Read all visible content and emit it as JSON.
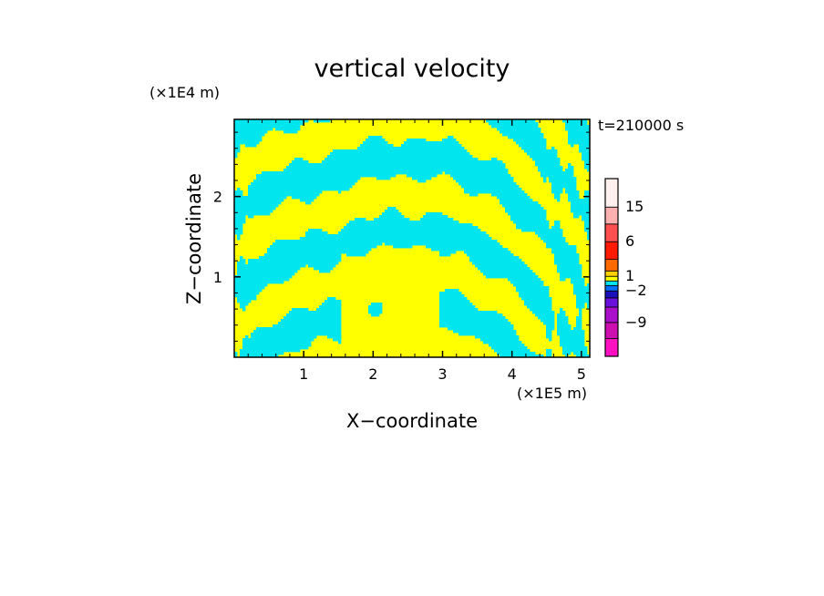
{
  "chart_data": {
    "type": "heatmap",
    "title": "vertical velocity",
    "xlabel": "X−coordinate",
    "ylabel": "Z−coordinate",
    "x_unit": "(×1E5 m)",
    "y_unit": "(×1E4 m)",
    "time_label": "t=210000 s",
    "xlim": [
      0,
      5.12
    ],
    "ylim": [
      0,
      2.96
    ],
    "x_ticks": [
      1,
      2,
      3,
      4,
      5
    ],
    "y_ticks": [
      1,
      2
    ],
    "x_tick_labels": [
      "1",
      "2",
      "3",
      "4",
      "5"
    ],
    "y_tick_labels": [
      "1",
      "2"
    ],
    "field_colors": {
      "positive": "#ffff00",
      "negative": "#00e5ee"
    },
    "colorbar": {
      "levels": [
        -12,
        -9,
        -6,
        -4,
        -2,
        -1,
        0,
        1,
        2,
        4,
        6,
        10,
        15,
        21
      ],
      "colors": [
        "#ff10c0",
        "#cc10b0",
        "#aa10cc",
        "#6a10dd",
        "#1a10bb",
        "#0070ff",
        "#00e5ee",
        "#ffff00",
        "#ffd000",
        "#ff6a00",
        "#ff1a00",
        "#ff5050",
        "#ffb0b0",
        "#fff0ee"
      ],
      "tick_labels": [
        "15",
        "6",
        "1",
        "−2",
        "−9"
      ]
    }
  }
}
